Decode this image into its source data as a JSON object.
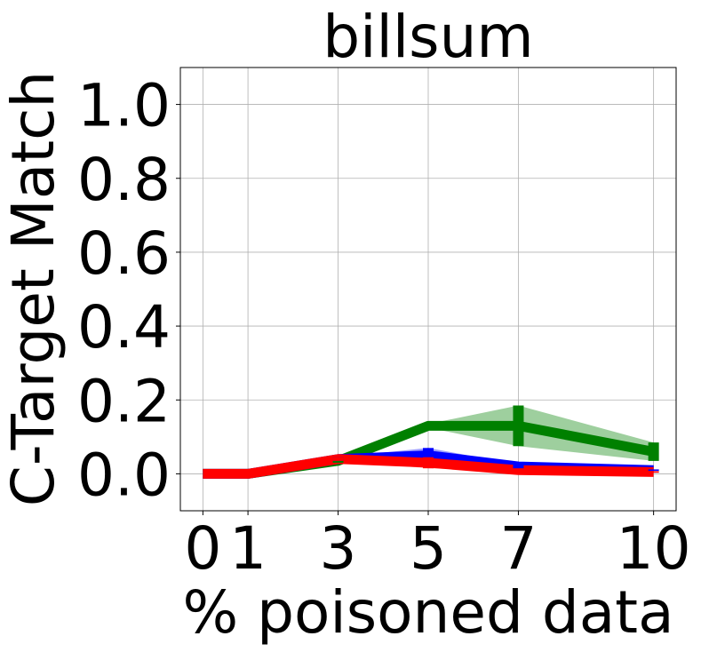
{
  "chart_data": {
    "type": "line",
    "title": "billsum",
    "xlabel": "% poisoned data",
    "ylabel": "C-Target Match",
    "x": [
      0,
      1,
      3,
      5,
      7,
      10
    ],
    "x_ticks": [
      0,
      1,
      3,
      5,
      7,
      10
    ],
    "x_tick_labels": [
      "0",
      "1",
      "3",
      "5",
      "7",
      "10"
    ],
    "xlim": [
      -0.5,
      10.5
    ],
    "ylim": [
      -0.1,
      1.1
    ],
    "y_ticks": [
      0.0,
      0.2,
      0.4,
      0.6,
      0.8,
      1.0
    ],
    "y_tick_labels": [
      "0.0",
      "0.2",
      "0.4",
      "0.6",
      "0.8",
      "1.0"
    ],
    "grid": true,
    "series": [
      {
        "color": "#008000",
        "values": [
          0.0,
          0.0,
          0.035,
          0.13,
          0.13,
          0.06
        ],
        "lower": [
          0.0,
          0.0,
          0.03,
          0.125,
          0.075,
          0.035
        ],
        "upper": [
          0.0,
          0.0,
          0.04,
          0.135,
          0.185,
          0.085
        ]
      },
      {
        "color": "#0000ff",
        "values": [
          0.0,
          0.0,
          0.04,
          0.05,
          0.02,
          0.01
        ],
        "lower": [
          0.0,
          0.0,
          0.035,
          0.03,
          0.015,
          0.008
        ],
        "upper": [
          0.0,
          0.0,
          0.045,
          0.07,
          0.025,
          0.012
        ]
      },
      {
        "color": "#ff0000",
        "values": [
          0.0,
          0.0,
          0.04,
          0.03,
          0.01,
          0.005
        ],
        "lower": [
          0.0,
          0.0,
          0.035,
          0.015,
          0.007,
          0.003
        ],
        "upper": [
          0.0,
          0.0,
          0.045,
          0.045,
          0.013,
          0.007
        ]
      }
    ]
  }
}
